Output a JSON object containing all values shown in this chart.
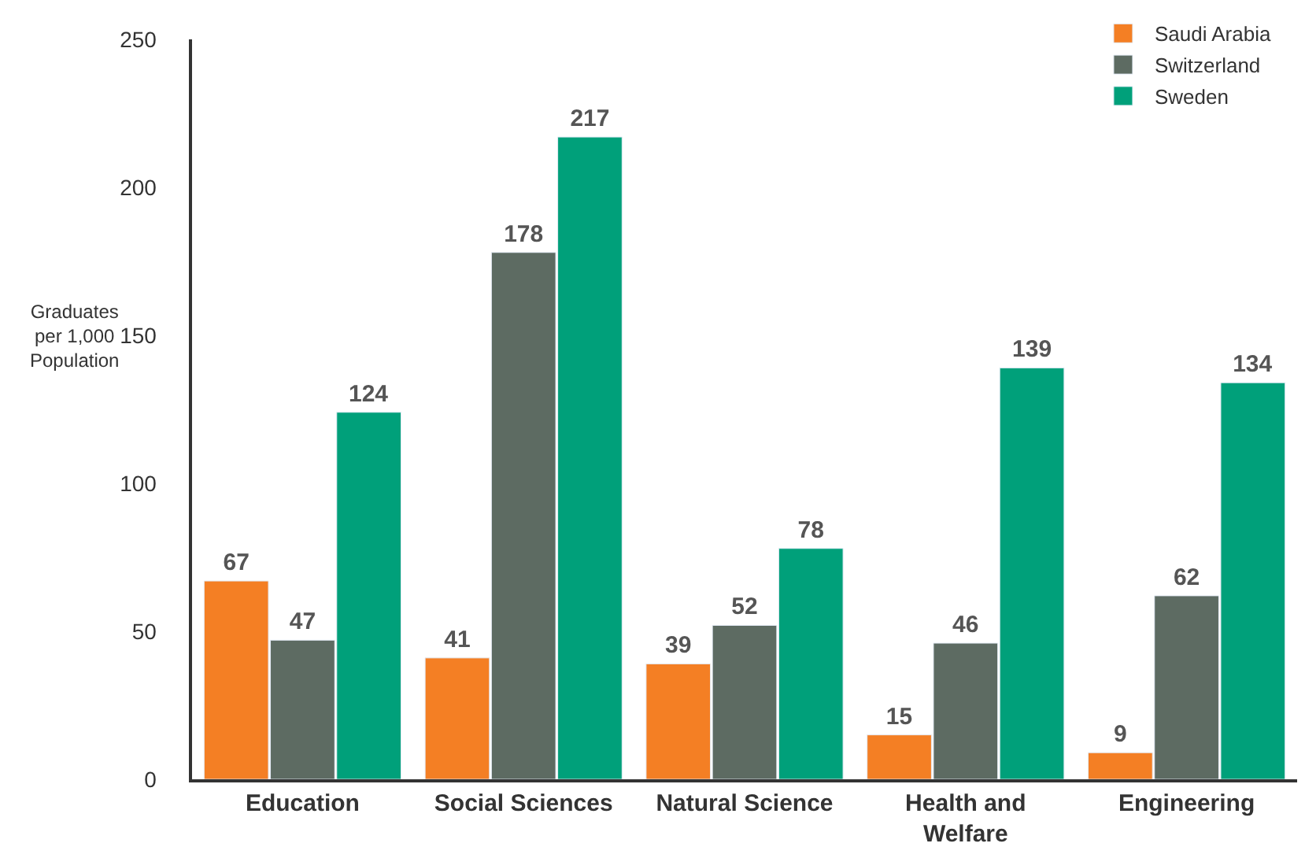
{
  "chart_data": {
    "type": "bar",
    "ylabel": "Graduates per 1,000 Population",
    "categories": [
      "Education",
      "Social Sciences",
      "Natural Science",
      "Health and Welfare",
      "Engineering"
    ],
    "series": [
      {
        "name": "Saudi Arabia",
        "color": "#f47f24",
        "values": [
          67,
          41,
          39,
          15,
          9
        ]
      },
      {
        "name": "Switzerland",
        "color": "#5d6b62",
        "values": [
          47,
          178,
          52,
          46,
          62
        ]
      },
      {
        "name": "Sweden",
        "color": "#00a07a",
        "values": [
          124,
          217,
          78,
          139,
          134
        ]
      }
    ],
    "ylim": [
      0,
      250
    ],
    "yticks": [
      0,
      50,
      100,
      150,
      200,
      250
    ],
    "data_labels": true,
    "legend": "top right"
  }
}
